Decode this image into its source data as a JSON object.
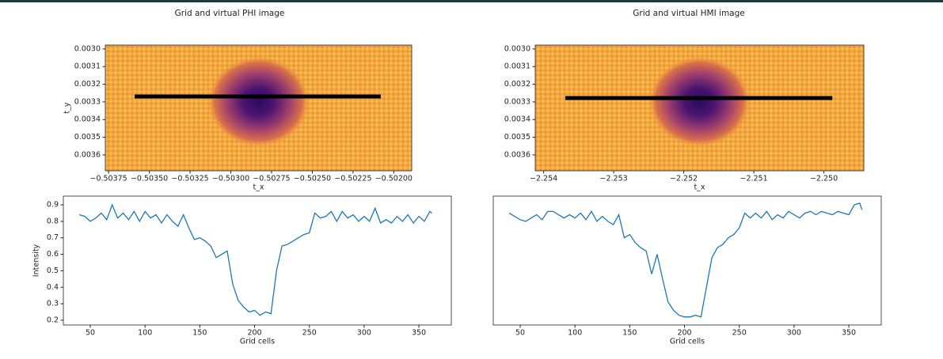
{
  "chart_data": [
    {
      "type": "image",
      "title": "Grid and virtual PHI image",
      "xlabel": "t_x",
      "ylabel": "t_y",
      "xlim": [
        -0.50377,
        -0.50189
      ],
      "ylim": [
        0.00369,
        0.002978
      ],
      "xticks": [
        {
          "value": -0.50375,
          "label": "−0.50375"
        },
        {
          "value": -0.5035,
          "label": "−0.50350"
        },
        {
          "value": -0.50325,
          "label": "−0.50325"
        },
        {
          "value": -0.503,
          "label": "−0.50300"
        },
        {
          "value": -0.50275,
          "label": "−0.50275"
        },
        {
          "value": -0.5025,
          "label": "−0.50250"
        },
        {
          "value": -0.50225,
          "label": "−0.50225"
        },
        {
          "value": -0.502,
          "label": "−0.50200"
        }
      ],
      "yticks": [
        {
          "value": 0.003,
          "label": "0.0030"
        },
        0.0031,
        0.0032,
        0.0033,
        0.0034,
        0.0035,
        0.0036
      ],
      "line_segment": {
        "x": [
          -0.50359,
          -0.50208
        ],
        "y": [
          0.003269,
          0.003269
        ],
        "color": "#000000"
      }
    },
    {
      "type": "image",
      "title": "Grid and virtual HMI image",
      "xlabel": "t_x",
      "xlim": [
        -2.25412,
        -2.24943
      ],
      "ylim": [
        0.00369,
        0.002978
      ],
      "xticks": [
        {
          "value": -2.254,
          "label": "−2.254"
        },
        {
          "value": -2.253,
          "label": "−2.253"
        },
        {
          "value": -2.252,
          "label": "−2.252"
        },
        {
          "value": -2.251,
          "label": "−2.251"
        },
        {
          "value": -2.25,
          "label": "−2.250"
        }
      ],
      "yticks": [
        {
          "value": 0.003,
          "label": "0.0030"
        },
        0.0031,
        0.0032,
        0.0033,
        0.0034,
        0.0035,
        0.0036
      ],
      "line_segment": {
        "x": [
          -2.25369,
          -2.24988
        ],
        "y": [
          0.003278,
          0.003278
        ],
        "color": "#000000"
      }
    },
    {
      "type": "line",
      "xlabel": "Grid cells",
      "ylabel": "Intensity",
      "xlim": [
        25.4,
        379.6
      ],
      "ylim": [
        0.171,
        0.953
      ],
      "xticks": [
        50,
        100,
        150,
        200,
        250,
        300,
        350
      ],
      "yticks": [
        0.2,
        0.3,
        0.4,
        0.5,
        0.6,
        0.7,
        0.8,
        0.9
      ],
      "x": [
        40,
        45,
        50,
        55,
        60,
        65,
        70,
        75,
        80,
        85,
        90,
        95,
        100,
        105,
        110,
        115,
        120,
        125,
        130,
        135,
        140,
        145,
        150,
        155,
        160,
        165,
        170,
        175,
        180,
        185,
        190,
        195,
        200,
        205,
        210,
        215,
        220,
        225,
        230,
        235,
        240,
        245,
        250,
        255,
        260,
        265,
        270,
        275,
        280,
        285,
        290,
        295,
        300,
        305,
        310,
        315,
        320,
        325,
        330,
        335,
        340,
        345,
        350,
        355,
        360,
        362
      ],
      "series": [
        {
          "color": "#1f77b4",
          "values": [
            0.84,
            0.83,
            0.8,
            0.82,
            0.85,
            0.81,
            0.9,
            0.82,
            0.85,
            0.81,
            0.86,
            0.8,
            0.86,
            0.82,
            0.84,
            0.79,
            0.84,
            0.8,
            0.77,
            0.84,
            0.76,
            0.69,
            0.7,
            0.68,
            0.65,
            0.58,
            0.6,
            0.62,
            0.42,
            0.32,
            0.28,
            0.25,
            0.26,
            0.23,
            0.25,
            0.24,
            0.5,
            0.65,
            0.66,
            0.68,
            0.7,
            0.72,
            0.73,
            0.85,
            0.82,
            0.83,
            0.86,
            0.8,
            0.86,
            0.82,
            0.84,
            0.8,
            0.83,
            0.8,
            0.88,
            0.79,
            0.81,
            0.79,
            0.83,
            0.8,
            0.84,
            0.79,
            0.83,
            0.8,
            0.86,
            0.85
          ]
        }
      ]
    },
    {
      "type": "line",
      "xlabel": "Grid cells",
      "xlim": [
        25.4,
        379.6
      ],
      "ylim": [
        0.171,
        0.953
      ],
      "xticks": [
        50,
        100,
        150,
        200,
        250,
        300,
        350
      ],
      "x": [
        40,
        45,
        50,
        55,
        60,
        65,
        70,
        75,
        80,
        85,
        90,
        95,
        100,
        105,
        110,
        115,
        120,
        125,
        130,
        135,
        140,
        145,
        150,
        155,
        160,
        165,
        170,
        175,
        180,
        185,
        190,
        195,
        200,
        205,
        210,
        215,
        220,
        225,
        230,
        235,
        240,
        245,
        250,
        255,
        260,
        265,
        270,
        275,
        280,
        285,
        290,
        295,
        300,
        305,
        310,
        315,
        320,
        325,
        330,
        335,
        340,
        345,
        350,
        355,
        360,
        362
      ],
      "series": [
        {
          "color": "#1f77b4",
          "values": [
            0.85,
            0.83,
            0.81,
            0.8,
            0.82,
            0.84,
            0.81,
            0.86,
            0.86,
            0.84,
            0.82,
            0.84,
            0.82,
            0.85,
            0.81,
            0.86,
            0.8,
            0.83,
            0.8,
            0.78,
            0.84,
            0.7,
            0.72,
            0.67,
            0.64,
            0.62,
            0.48,
            0.6,
            0.45,
            0.31,
            0.26,
            0.23,
            0.22,
            0.22,
            0.23,
            0.22,
            0.4,
            0.58,
            0.64,
            0.66,
            0.7,
            0.72,
            0.76,
            0.85,
            0.82,
            0.85,
            0.82,
            0.86,
            0.81,
            0.84,
            0.82,
            0.86,
            0.84,
            0.82,
            0.85,
            0.86,
            0.84,
            0.86,
            0.85,
            0.84,
            0.86,
            0.85,
            0.84,
            0.9,
            0.91,
            0.87
          ]
        }
      ]
    }
  ]
}
